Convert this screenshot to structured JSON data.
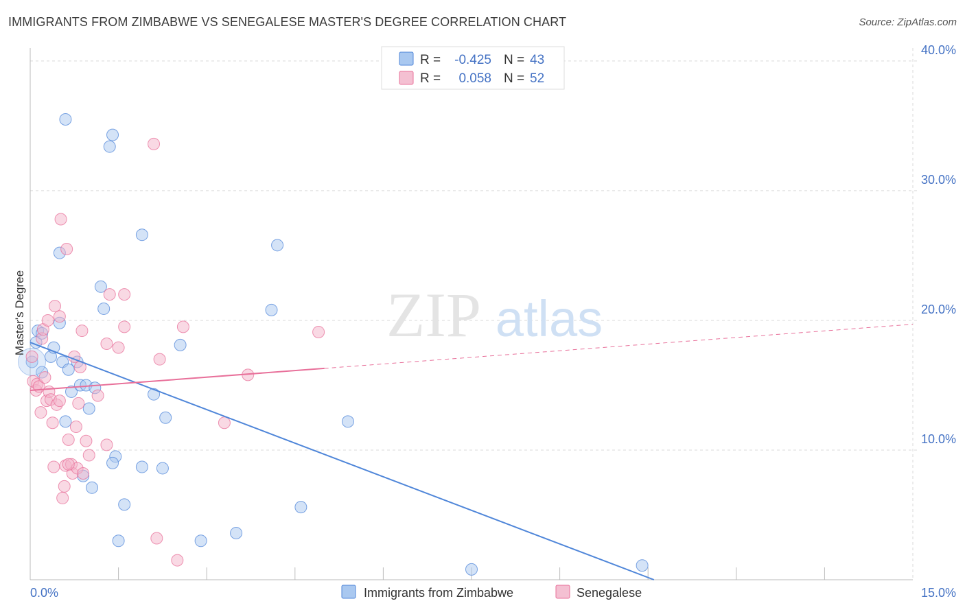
{
  "title": "IMMIGRANTS FROM ZIMBABWE VS SENEGALESE MASTER'S DEGREE CORRELATION CHART",
  "source": "Source: ZipAtlas.com",
  "watermark": {
    "zip": "ZIP",
    "atlas": "atlas"
  },
  "colors": {
    "blue": "#4f86d9",
    "blue_fill": "#a9c8f0",
    "pink": "#e8709a",
    "pink_fill": "#f4b3c9",
    "axis_text": "#4472c4",
    "grid": "#d9d9d9"
  },
  "chart_data": {
    "type": "scatter",
    "title": "IMMIGRANTS FROM ZIMBABWE VS SENEGALESE MASTER'S DEGREE CORRELATION CHART",
    "xlabel": "",
    "ylabel": "Master's Degree",
    "xlim": [
      0,
      15
    ],
    "ylim": [
      0,
      41
    ],
    "y_ticks": [
      {
        "value": 10,
        "label": "10.0%"
      },
      {
        "value": 20,
        "label": "20.0%"
      },
      {
        "value": 30,
        "label": "30.0%"
      },
      {
        "value": 40,
        "label": "40.0%"
      }
    ],
    "x_tick_labels": [
      {
        "value": 0,
        "label": "0.0%"
      },
      {
        "value": 15,
        "label": "15.0%"
      }
    ],
    "x_minor_ticks": [
      1.5,
      3.0,
      4.5,
      6.0,
      7.5,
      9.0,
      10.5,
      12.0,
      13.5
    ],
    "legend": [
      {
        "r_label": "R =",
        "r_value": "-0.425",
        "n_label": "N =",
        "n_value": "43"
      },
      {
        "r_label": "R =",
        "r_value": "0.058",
        "n_label": "N =",
        "n_value": "52"
      }
    ],
    "series": [
      {
        "name": "Immigrants from Zimbabwe",
        "color": "#4f86d9",
        "trend": {
          "x1": 0.0,
          "y1": 18.3,
          "x2": 10.6,
          "y2": 0.0,
          "dashed_to": null
        },
        "points": [
          [
            0.03,
            16.8
          ],
          [
            0.1,
            18.3
          ],
          [
            0.13,
            19.2
          ],
          [
            0.2,
            19.0
          ],
          [
            0.2,
            16.0
          ],
          [
            0.35,
            17.2
          ],
          [
            0.4,
            17.9
          ],
          [
            0.5,
            19.8
          ],
          [
            0.5,
            25.2
          ],
          [
            0.55,
            16.8
          ],
          [
            0.6,
            12.2
          ],
          [
            0.65,
            16.2
          ],
          [
            0.7,
            14.5
          ],
          [
            0.8,
            16.8
          ],
          [
            0.85,
            15.0
          ],
          [
            0.9,
            8.0
          ],
          [
            0.95,
            15.0
          ],
          [
            1.0,
            13.2
          ],
          [
            1.05,
            7.1
          ],
          [
            1.1,
            14.8
          ],
          [
            1.2,
            22.6
          ],
          [
            1.25,
            20.9
          ],
          [
            1.35,
            33.4
          ],
          [
            1.4,
            34.3
          ],
          [
            1.45,
            9.5
          ],
          [
            1.5,
            3.0
          ],
          [
            1.6,
            5.8
          ],
          [
            1.9,
            26.6
          ],
          [
            1.9,
            8.7
          ],
          [
            2.1,
            14.3
          ],
          [
            2.25,
            8.6
          ],
          [
            2.3,
            12.5
          ],
          [
            2.55,
            18.1
          ],
          [
            2.9,
            3.0
          ],
          [
            3.5,
            3.6
          ],
          [
            4.1,
            20.8
          ],
          [
            4.2,
            25.8
          ],
          [
            4.6,
            5.6
          ],
          [
            5.4,
            12.2
          ],
          [
            7.5,
            0.8
          ],
          [
            10.4,
            1.1
          ],
          [
            0.6,
            35.5
          ],
          [
            1.4,
            9.0
          ]
        ]
      },
      {
        "name": "Senegalese",
        "color": "#e8709a",
        "trend": {
          "x1": 0.0,
          "y1": 14.6,
          "x2": 5.0,
          "y2": 16.3,
          "dashed_to": {
            "x": 15.0,
            "y": 19.7
          }
        },
        "points": [
          [
            0.03,
            17.2
          ],
          [
            0.05,
            15.3
          ],
          [
            0.1,
            14.6
          ],
          [
            0.12,
            15.1
          ],
          [
            0.15,
            14.9
          ],
          [
            0.18,
            12.9
          ],
          [
            0.2,
            18.6
          ],
          [
            0.22,
            19.3
          ],
          [
            0.25,
            15.6
          ],
          [
            0.28,
            13.8
          ],
          [
            0.3,
            20.0
          ],
          [
            0.32,
            14.5
          ],
          [
            0.35,
            13.9
          ],
          [
            0.38,
            12.1
          ],
          [
            0.4,
            8.7
          ],
          [
            0.42,
            21.1
          ],
          [
            0.45,
            13.5
          ],
          [
            0.5,
            20.3
          ],
          [
            0.5,
            13.8
          ],
          [
            0.52,
            27.8
          ],
          [
            0.55,
            6.3
          ],
          [
            0.58,
            7.2
          ],
          [
            0.6,
            8.8
          ],
          [
            0.62,
            25.5
          ],
          [
            0.65,
            10.8
          ],
          [
            0.7,
            8.9
          ],
          [
            0.72,
            8.2
          ],
          [
            0.75,
            17.2
          ],
          [
            0.78,
            11.8
          ],
          [
            0.8,
            8.6
          ],
          [
            0.82,
            13.6
          ],
          [
            0.85,
            16.4
          ],
          [
            0.88,
            19.2
          ],
          [
            0.9,
            8.2
          ],
          [
            0.95,
            10.7
          ],
          [
            1.0,
            9.6
          ],
          [
            1.15,
            14.2
          ],
          [
            1.3,
            10.4
          ],
          [
            1.3,
            18.2
          ],
          [
            1.35,
            22.0
          ],
          [
            1.5,
            17.9
          ],
          [
            1.6,
            22.0
          ],
          [
            1.6,
            19.5
          ],
          [
            2.1,
            33.6
          ],
          [
            2.15,
            3.2
          ],
          [
            2.2,
            17.0
          ],
          [
            2.5,
            1.5
          ],
          [
            2.6,
            19.5
          ],
          [
            3.3,
            12.1
          ],
          [
            3.7,
            15.8
          ],
          [
            4.9,
            19.1
          ],
          [
            0.65,
            8.9
          ]
        ]
      }
    ]
  },
  "bottom_legend": [
    {
      "label": "Immigrants from Zimbabwe"
    },
    {
      "label": "Senegalese"
    }
  ]
}
